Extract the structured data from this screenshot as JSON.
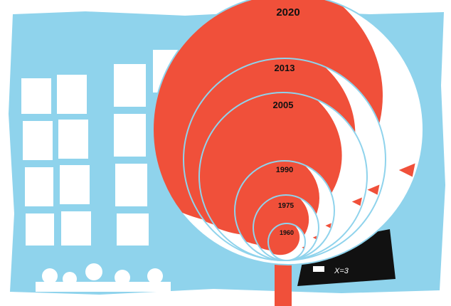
{
  "heads": [
    {
      "label": "2020"
    },
    {
      "label": "2013"
    },
    {
      "label": "2005"
    },
    {
      "label": "1990"
    },
    {
      "label": "1975"
    },
    {
      "label": "1960"
    }
  ],
  "board_text": "X=3"
}
